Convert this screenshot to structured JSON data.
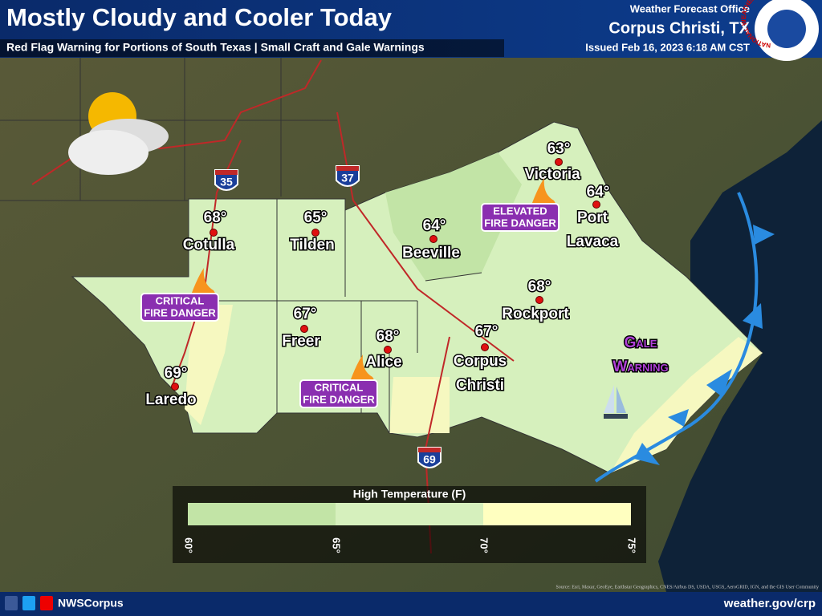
{
  "header": {
    "title": "Mostly Cloudy and Cooler Today",
    "subtitle": "Red Flag Warning for Portions of South Texas | Small Craft and Gale Warnings",
    "office": "Weather Forecast Office",
    "location": "Corpus Christi, TX",
    "issued": "Issued Feb 16, 2023 6:18 AM CST",
    "logo_text": "NATIONAL WEATHER SERVICE"
  },
  "highways": [
    "35",
    "37",
    "69"
  ],
  "cities": [
    {
      "temp": "68°",
      "label_lines": [
        "Cotulla"
      ]
    },
    {
      "temp": "65°",
      "label_lines": [
        "Tilden"
      ]
    },
    {
      "temp": "64°",
      "label_lines": [
        "Beeville"
      ]
    },
    {
      "temp": "63°",
      "label_lines": [
        "Victoria"
      ]
    },
    {
      "temp": "64°",
      "label_lines": [
        "Port",
        "Lavaca"
      ]
    },
    {
      "temp": "68°",
      "label_lines": [
        "Rockport"
      ]
    },
    {
      "temp": "67°",
      "label_lines": [
        "Corpus",
        "Christi"
      ]
    },
    {
      "temp": "68°",
      "label_lines": [
        "Alice"
      ]
    },
    {
      "temp": "67°",
      "label_lines": [
        "Freer"
      ]
    },
    {
      "temp": "69°",
      "label_lines": [
        "Laredo"
      ]
    }
  ],
  "hazards": [
    {
      "lines": [
        "CRITICAL",
        "FIRE DANGER"
      ]
    },
    {
      "lines": [
        "CRITICAL",
        "FIRE DANGER"
      ]
    },
    {
      "lines": [
        "ELEVATED",
        "FIRE DANGER"
      ]
    }
  ],
  "gale": {
    "lines": [
      "Gale",
      "Warning"
    ]
  },
  "legend": {
    "title": "High Temperature (F)",
    "ticks": [
      "60°",
      "65°",
      "70°",
      "75°"
    ]
  },
  "footer": {
    "social": "NWSCorpus",
    "website": "weather.gov/crp",
    "source": "Source: Esri, Maxar, GeoEye, Earthstar Geographics, CNES/Airbus DS, USDA, USGS, AeroGRID, IGN, and the GIS User Community"
  }
}
